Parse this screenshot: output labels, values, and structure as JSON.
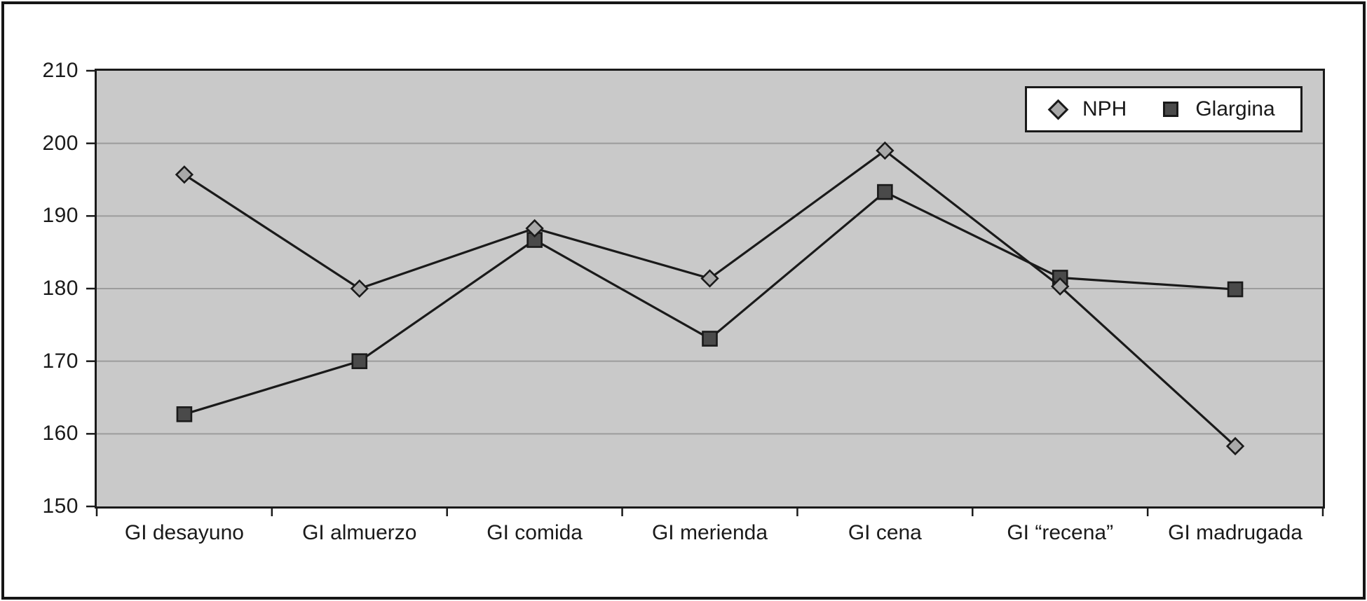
{
  "figure": {
    "title": "",
    "background_color": "#ffffff",
    "frame_color": "#161616"
  },
  "legend": {
    "items": [
      {
        "label": "NPH",
        "marker": "diamond-icon"
      },
      {
        "label": "Glargina",
        "marker": "square-icon"
      }
    ],
    "position": "top-right",
    "border_color": "#1a1a1a",
    "background_color": "#ffffff"
  },
  "chart_data": {
    "type": "line",
    "categories": [
      "GI desayuno",
      "GI almuerzo",
      "GI comida",
      "GI merienda",
      "GI cena",
      "GI “recena”",
      "GI madrugada"
    ],
    "series": [
      {
        "name": "Glargina",
        "marker": "square",
        "marker_color": "#4a4a4a",
        "line_color": "#1a1a1a",
        "values": [
          162.7,
          170.0,
          186.7,
          173.1,
          193.3,
          181.5,
          179.9
        ]
      },
      {
        "name": "NPH",
        "marker": "diamond",
        "marker_color": "#a8a8a8",
        "line_color": "#1a1a1a",
        "values": [
          195.7,
          180.0,
          188.3,
          181.4,
          199.0,
          180.3,
          158.3
        ]
      }
    ],
    "title": "",
    "xlabel": "",
    "ylabel": "",
    "ylim": [
      150,
      210
    ],
    "yticks": [
      150,
      160,
      170,
      180,
      190,
      200,
      210
    ],
    "grid": "horizontal",
    "grid_color": "#9c9c9c",
    "plot_background": "#c9c9c9",
    "legend_position": "top-right"
  }
}
